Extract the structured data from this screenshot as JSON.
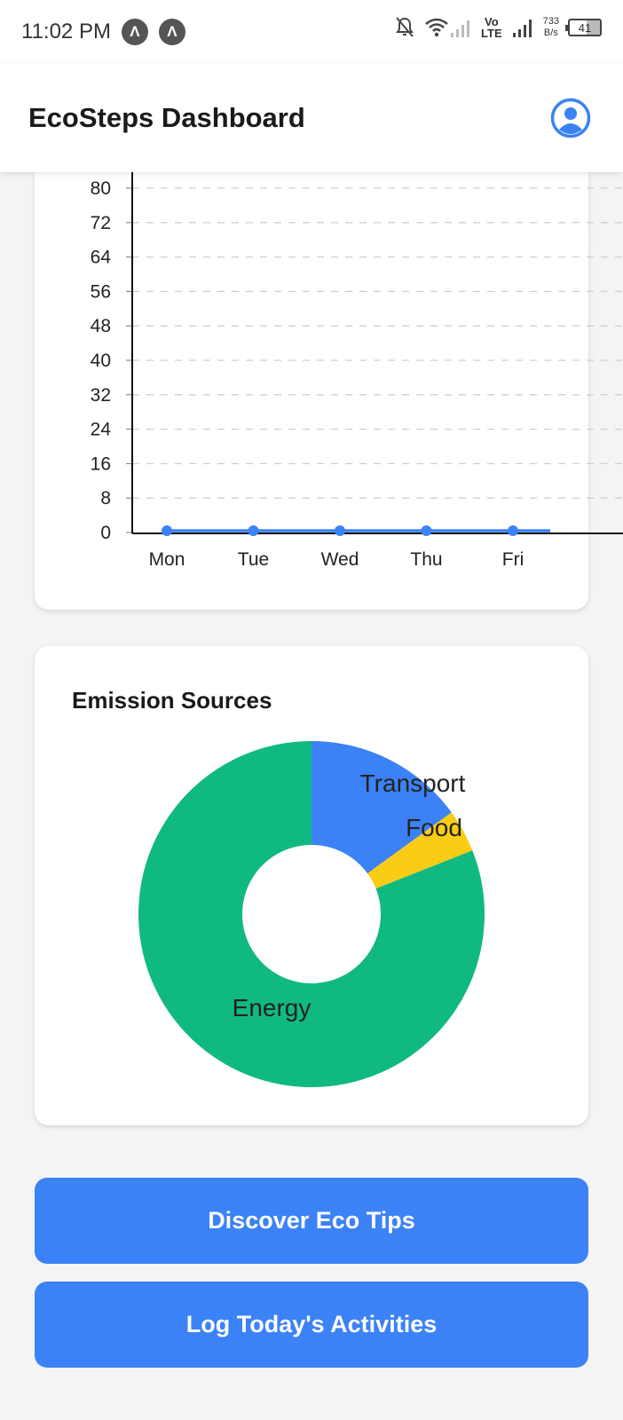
{
  "status_bar": {
    "time": "11:02 PM",
    "notification_icons": [
      "app-notification-icon",
      "app-notification-icon"
    ],
    "network_speed_value": "733",
    "network_speed_unit": "B/s",
    "volte_label": "Vo",
    "lte_label": "LTE",
    "battery": "41"
  },
  "header": {
    "title": "EcoSteps Dashboard",
    "profile_icon": "profile-icon"
  },
  "emission_sources": {
    "title": "Emission Sources"
  },
  "buttons": {
    "tips": "Discover Eco Tips",
    "log": "Log Today's Activities"
  },
  "colors": {
    "accent": "#3b82f6",
    "energy": "#10b981",
    "transport": "#3b82f6",
    "food": "#facc15"
  },
  "chart_data": [
    {
      "type": "line",
      "x": [
        "Mon",
        "Tue",
        "Wed",
        "Thu",
        "Fri"
      ],
      "series": [
        {
          "values": [
            0,
            0,
            0,
            0,
            0
          ],
          "color": "#3b82f6"
        }
      ],
      "yticks": [
        0,
        8,
        16,
        24,
        32,
        40,
        48,
        56,
        64,
        72,
        80
      ],
      "ylim": [
        0,
        80
      ],
      "grid": true
    },
    {
      "type": "pie",
      "title": "Emission Sources",
      "donut": true,
      "slices": [
        {
          "label": "Transport",
          "value": 15,
          "color": "#3b82f6"
        },
        {
          "label": "Food",
          "value": 4,
          "color": "#facc15"
        },
        {
          "label": "Energy",
          "value": 81,
          "color": "#10b981"
        }
      ]
    }
  ]
}
